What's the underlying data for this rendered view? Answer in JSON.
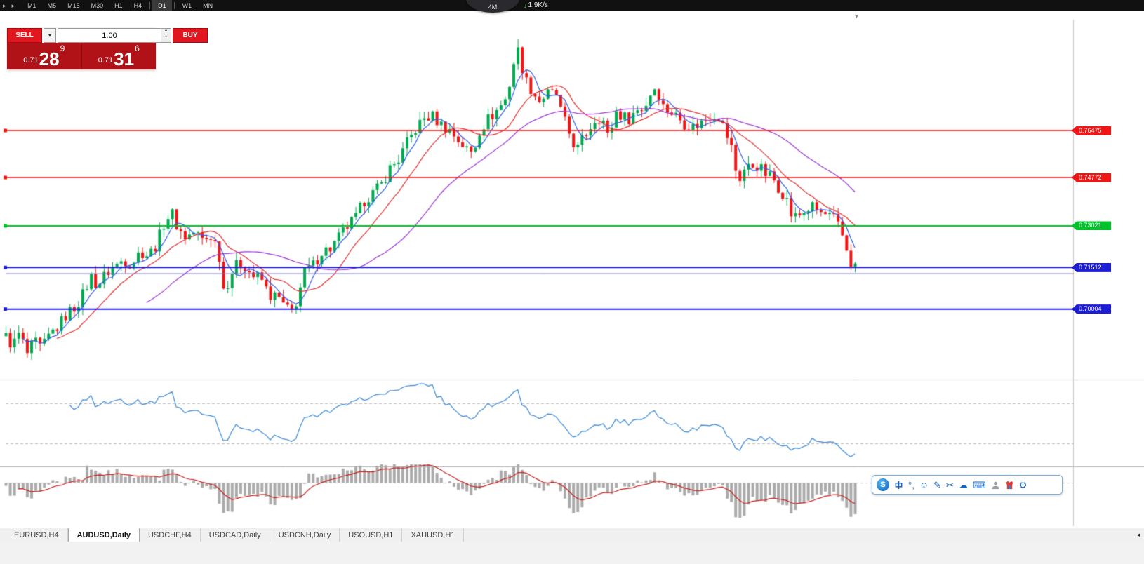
{
  "topbar": {
    "timeframes": [
      "M1",
      "M5",
      "M15",
      "M30",
      "H1",
      "H4",
      "D1",
      "W1",
      "MN"
    ],
    "active_timeframe": "D1"
  },
  "icons": {
    "menu_left_1": "▸",
    "menu_left_2": "▸",
    "download_arrow": "↓",
    "dropdown": "▾",
    "spinner_up": "▴",
    "spinner_down": "▾",
    "shift_marker": "▼",
    "tab_scroll": "◄",
    "punctuation": "°,",
    "emoji": "☺",
    "pen": "✎",
    "scissors": "✂",
    "cloud": "☁",
    "keyboard": "⌨",
    "gear": "⚙"
  },
  "speed_widget": {
    "badge": "4M",
    "speed": "1.9K/s"
  },
  "trade_panel": {
    "sell_label": "SELL",
    "buy_label": "BUY",
    "volume": "1.00",
    "sell_price": {
      "prefix": "0.71",
      "big": "28",
      "sup": "9"
    },
    "buy_price": {
      "prefix": "0.71",
      "big": "31",
      "sup": "6"
    }
  },
  "ime": {
    "logo_text": "S"
  },
  "tabs": {
    "items": [
      "EURUSD,H4",
      "AUDUSD,Daily",
      "USDCHF,H4",
      "USDCAD,Daily",
      "USDCNH,Daily",
      "USOUSD,H1",
      "XAUUSD,H1"
    ],
    "active_index": 1
  },
  "chart_data": {
    "type": "candlestick",
    "symbol": "AUDUSD",
    "timeframe": "Daily",
    "price_axis": {
      "top": 0.8049,
      "bottom": 0.6748
    },
    "colors": {
      "up": "#00a94f",
      "down": "#ee1515"
    },
    "levels": [
      {
        "label": "0.76475",
        "value": 0.76475,
        "color": "#f21515",
        "width": 1.5
      },
      {
        "label": "0.74772",
        "value": 0.74772,
        "color": "#f21515",
        "width": 1.5
      },
      {
        "label": "0.73021",
        "value": 0.73021,
        "color": "#00c32b",
        "width": 2
      },
      {
        "label": "0.71512",
        "value": 0.71512,
        "color": "#1d1dd8",
        "width": 2
      },
      {
        "label": "0.70004",
        "value": 0.70004,
        "color": "#1d1dd8",
        "width": 2
      }
    ],
    "bid_line": {
      "value": 0.71289,
      "color": "#7070c8"
    },
    "moving_averages": [
      {
        "period": 5,
        "color": "#2d5be8"
      },
      {
        "period": 13,
        "color": "#e03030"
      },
      {
        "period": 34,
        "color": "#9a35d2"
      }
    ],
    "indicators": [
      {
        "type": "rsi",
        "period": 14,
        "color": "#3a87d6",
        "levels": [
          70,
          30
        ]
      },
      {
        "type": "bears_power",
        "period": 13,
        "hist_color": "#ababab",
        "signal_color": "#c82020"
      }
    ],
    "candles": {
      "count": 200,
      "path": [
        [
          0.0,
          0.69
        ],
        [
          0.008,
          0.6868
        ],
        [
          0.016,
          0.6915
        ],
        [
          0.025,
          0.6838
        ],
        [
          0.034,
          0.6882
        ],
        [
          0.042,
          0.6855
        ],
        [
          0.052,
          0.691
        ],
        [
          0.062,
          0.694
        ],
        [
          0.072,
          0.6985
        ],
        [
          0.082,
          0.701
        ],
        [
          0.092,
          0.706
        ],
        [
          0.1,
          0.712
        ],
        [
          0.108,
          0.7085
        ],
        [
          0.118,
          0.713
        ],
        [
          0.128,
          0.7155
        ],
        [
          0.138,
          0.718
        ],
        [
          0.148,
          0.7165
        ],
        [
          0.158,
          0.721
        ],
        [
          0.168,
          0.7195
        ],
        [
          0.178,
          0.724
        ],
        [
          0.188,
          0.733
        ],
        [
          0.196,
          0.7345
        ],
        [
          0.203,
          0.729
        ],
        [
          0.212,
          0.726
        ],
        [
          0.222,
          0.728
        ],
        [
          0.232,
          0.725
        ],
        [
          0.242,
          0.7265
        ],
        [
          0.25,
          0.722
        ],
        [
          0.257,
          0.706
        ],
        [
          0.265,
          0.713
        ],
        [
          0.272,
          0.716
        ],
        [
          0.28,
          0.7165
        ],
        [
          0.29,
          0.712
        ],
        [
          0.3,
          0.7115
        ],
        [
          0.31,
          0.705
        ],
        [
          0.32,
          0.7045
        ],
        [
          0.33,
          0.7
        ],
        [
          0.338,
          0.699
        ],
        [
          0.345,
          0.706
        ],
        [
          0.352,
          0.7135
        ],
        [
          0.362,
          0.716
        ],
        [
          0.372,
          0.721
        ],
        [
          0.382,
          0.722
        ],
        [
          0.392,
          0.726
        ],
        [
          0.402,
          0.73
        ],
        [
          0.412,
          0.733
        ],
        [
          0.422,
          0.7395
        ],
        [
          0.432,
          0.742
        ],
        [
          0.442,
          0.745
        ],
        [
          0.452,
          0.751
        ],
        [
          0.462,
          0.754
        ],
        [
          0.472,
          0.76
        ],
        [
          0.482,
          0.765
        ],
        [
          0.492,
          0.769
        ],
        [
          0.502,
          0.77
        ],
        [
          0.512,
          0.767
        ],
        [
          0.522,
          0.765
        ],
        [
          0.532,
          0.7615
        ],
        [
          0.542,
          0.758
        ],
        [
          0.55,
          0.7565
        ],
        [
          0.558,
          0.765
        ],
        [
          0.568,
          0.769
        ],
        [
          0.578,
          0.772
        ],
        [
          0.588,
          0.776
        ],
        [
          0.596,
          0.785
        ],
        [
          0.601,
          0.796
        ],
        [
          0.606,
          0.79
        ],
        [
          0.612,
          0.783
        ],
        [
          0.62,
          0.779
        ],
        [
          0.628,
          0.7755
        ],
        [
          0.638,
          0.778
        ],
        [
          0.648,
          0.778
        ],
        [
          0.655,
          0.77
        ],
        [
          0.663,
          0.764
        ],
        [
          0.672,
          0.7575
        ],
        [
          0.68,
          0.762
        ],
        [
          0.688,
          0.766
        ],
        [
          0.696,
          0.77
        ],
        [
          0.704,
          0.768
        ],
        [
          0.71,
          0.761
        ],
        [
          0.717,
          0.772
        ],
        [
          0.725,
          0.77
        ],
        [
          0.733,
          0.769
        ],
        [
          0.742,
          0.772
        ],
        [
          0.752,
          0.773
        ],
        [
          0.76,
          0.779
        ],
        [
          0.766,
          0.781
        ],
        [
          0.772,
          0.774
        ],
        [
          0.78,
          0.772
        ],
        [
          0.79,
          0.77
        ],
        [
          0.8,
          0.767
        ],
        [
          0.81,
          0.766
        ],
        [
          0.82,
          0.768
        ],
        [
          0.83,
          0.77
        ],
        [
          0.838,
          0.771
        ],
        [
          0.846,
          0.765
        ],
        [
          0.854,
          0.759
        ],
        [
          0.862,
          0.746
        ],
        [
          0.87,
          0.751
        ],
        [
          0.878,
          0.752
        ],
        [
          0.886,
          0.752
        ],
        [
          0.894,
          0.749
        ],
        [
          0.902,
          0.748
        ],
        [
          0.91,
          0.744
        ],
        [
          0.918,
          0.741
        ],
        [
          0.926,
          0.733
        ],
        [
          0.934,
          0.734
        ],
        [
          0.942,
          0.736
        ],
        [
          0.95,
          0.737
        ],
        [
          0.958,
          0.735
        ],
        [
          0.966,
          0.734
        ],
        [
          0.974,
          0.733
        ],
        [
          0.982,
          0.729
        ],
        [
          0.988,
          0.724
        ],
        [
          0.994,
          0.717
        ],
        [
          1.0,
          0.7155
        ]
      ]
    }
  }
}
